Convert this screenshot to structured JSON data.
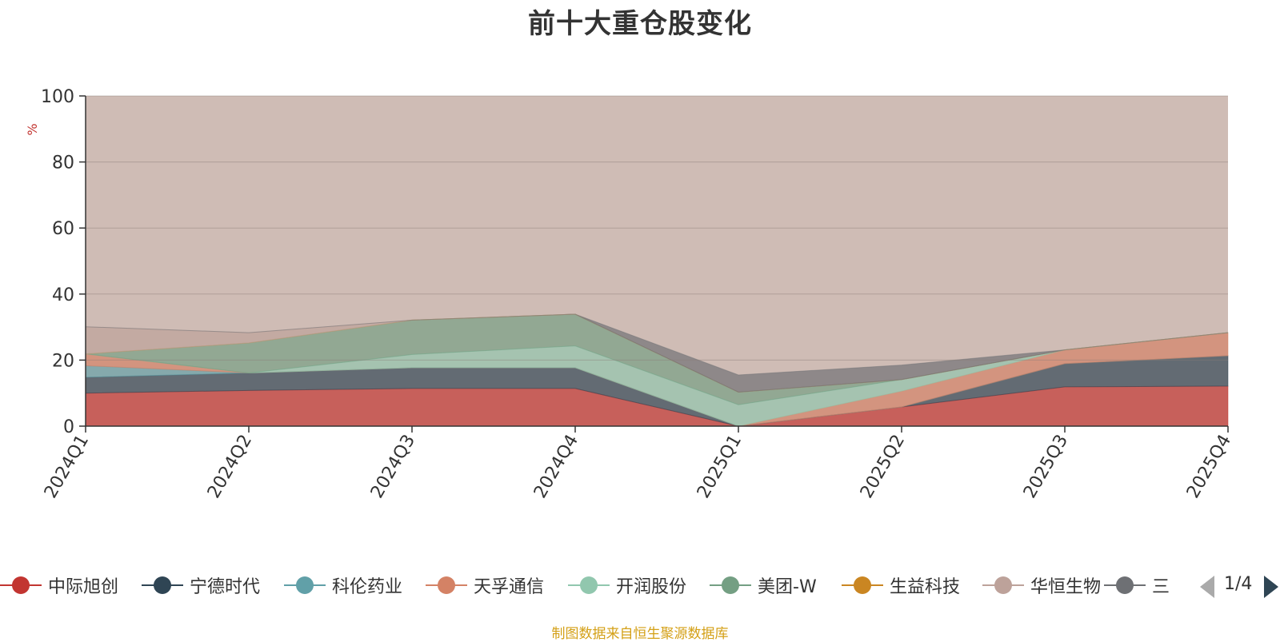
{
  "chart_data": {
    "type": "area",
    "stacked": true,
    "title": "前十大重仓股变化",
    "ylabel": "%",
    "ylim": [
      0,
      100
    ],
    "yticks": [
      0,
      20,
      40,
      60,
      80,
      100
    ],
    "categories": [
      "2024Q1",
      "2024Q2",
      "2024Q3",
      "2024Q4",
      "2025Q1",
      "2025Q2",
      "2025Q3",
      "2025Q4"
    ],
    "series": [
      {
        "name": "中际旭创",
        "color": "#c23531",
        "values": [
          10,
          10.8,
          11.4,
          11.4,
          0,
          5.8,
          11.9,
          12.1
        ]
      },
      {
        "name": "宁德时代",
        "color": "#2f4554",
        "values": [
          4.8,
          5.3,
          6.3,
          6.3,
          0,
          0,
          7,
          9.2
        ]
      },
      {
        "name": "科伦药业",
        "color": "#61a0a8",
        "values": [
          3.5,
          0,
          0,
          0,
          0,
          0,
          0,
          0
        ]
      },
      {
        "name": "天孚通信",
        "color": "#d48265",
        "values": [
          3.6,
          0,
          0,
          0,
          0,
          4.8,
          4.2,
          7
        ]
      },
      {
        "name": "开润股份",
        "color": "#91c7ae",
        "values": [
          0,
          0,
          4,
          6.6,
          6.5,
          3.5,
          0,
          0
        ]
      },
      {
        "name": "美团-W",
        "color": "#749f83",
        "values": [
          0,
          9.1,
          10.4,
          9.6,
          3.8,
          0,
          0,
          0
        ]
      },
      {
        "name": "生益科技",
        "color": "#ca8622",
        "values": [
          0,
          0,
          0,
          0,
          0,
          0,
          0,
          0
        ]
      },
      {
        "name": "华恒生物",
        "color": "#bda29a",
        "values": [
          8.2,
          3.1,
          0,
          0,
          0,
          0,
          0,
          0
        ]
      },
      {
        "name": "三",
        "color": "#6e7074",
        "values": [
          0,
          0,
          0,
          0,
          5.2,
          4.4,
          0,
          0
        ]
      }
    ],
    "other_layers_note": "series beyond legend page 1/4 are drawn from the remaining band data"
  },
  "legend": {
    "items": [
      "中际旭创",
      "宁德时代",
      "科伦药业",
      "天孚通信",
      "开润股份",
      "美团-W",
      "生益科技",
      "华恒生物",
      "三"
    ],
    "page_indicator": "1/4"
  },
  "source_note": "制图数据来自恒生聚源数据库"
}
